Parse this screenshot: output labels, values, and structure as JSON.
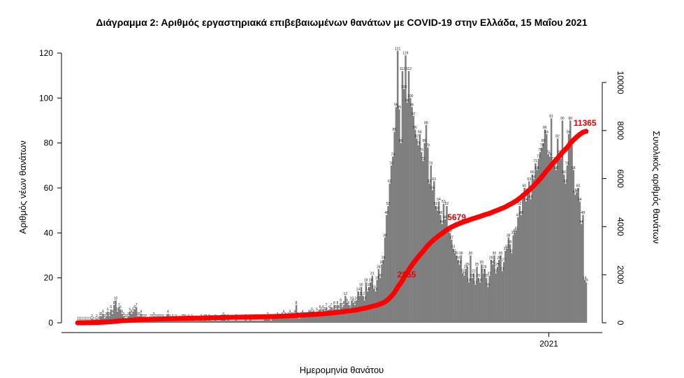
{
  "chart_data": {
    "type": "bar",
    "title": "Διάγραμμα 2: Αριθμός εργαστηριακά επιβεβαιωμένων θανάτων με COVID-19 στην Ελλάδα, 15 Μαΐου 2021",
    "xlabel": "Ημερομηνία θανάτου",
    "ylabel": "Αριθμός νέων θανάτων",
    "y2label": "Συνολικός αριθμός θανάτων",
    "ylim": [
      0,
      125
    ],
    "y2lim": [
      0,
      12000
    ],
    "yticks": [
      0,
      20,
      40,
      60,
      80,
      100,
      120
    ],
    "y2ticks": [
      0,
      2000,
      4000,
      6000,
      8000,
      10000
    ],
    "xticks": [
      {
        "label": "2021",
        "index": 298
      }
    ],
    "grid": false,
    "legend": "none",
    "bar_color": "#7f7f7f",
    "line_color": "#ff0000",
    "series": [
      {
        "kind": "bar",
        "values": [
          1,
          1,
          1,
          1,
          1,
          1,
          1,
          1,
          1,
          2,
          1,
          1,
          2,
          1,
          3,
          3,
          4,
          2,
          3,
          5,
          3,
          6,
          4,
          8,
          10,
          5,
          7,
          6,
          4,
          3,
          2,
          2,
          3,
          5,
          4,
          5,
          6,
          7,
          3,
          3,
          4,
          2,
          2,
          2,
          1,
          1,
          2,
          2,
          3,
          2,
          2,
          2,
          2,
          2,
          2,
          1,
          2,
          4,
          2,
          1,
          2,
          1,
          2,
          1,
          1,
          1,
          2,
          2,
          2,
          1,
          2,
          1,
          2,
          1,
          1,
          1,
          1,
          1,
          2,
          1,
          2,
          2,
          1,
          2,
          1,
          1,
          1,
          2,
          1,
          1,
          1,
          2,
          3,
          2,
          1,
          2,
          1,
          1,
          1,
          1,
          2,
          1,
          1,
          1,
          1,
          1,
          2,
          1,
          1,
          2,
          1,
          1,
          1,
          1,
          1,
          1,
          1,
          1,
          2,
          2,
          3,
          2,
          1,
          2,
          2,
          2,
          3,
          2,
          2,
          3,
          4,
          3,
          2,
          3,
          4,
          3,
          3,
          4,
          8,
          3,
          2,
          3,
          4,
          3,
          3,
          3,
          4,
          4,
          5,
          4,
          3,
          5,
          4,
          6,
          5,
          6,
          5,
          7,
          4,
          6,
          7,
          5,
          8,
          6,
          8,
          6,
          9,
          7,
          8,
          12,
          9,
          8,
          6,
          10,
          9,
          8,
          10,
          14,
          12,
          16,
          12,
          10,
          18,
          14,
          16,
          18,
          21,
          15,
          14,
          19,
          24,
          20,
          26,
          28,
          38,
          48,
          52,
          62,
          70,
          74,
          85,
          96,
          121,
          95,
          80,
          112,
          104,
          119,
          98,
          112,
          100,
          96,
          92,
          86,
          82,
          79,
          84,
          76,
          72,
          80,
          88,
          78,
          62,
          70,
          59,
          63,
          52,
          50,
          54,
          48,
          44,
          53,
          46,
          52,
          41,
          40,
          37,
          33,
          31,
          30,
          28,
          26,
          30,
          22,
          21,
          24,
          25,
          18,
          30,
          20,
          22,
          17,
          25,
          20,
          18,
          26,
          22,
          24,
          20,
          16,
          21,
          28,
          26,
          30,
          22,
          25,
          28,
          30,
          23,
          27,
          32,
          33,
          38,
          35,
          31,
          39,
          40,
          41,
          47,
          52,
          48,
          56,
          60,
          54,
          58,
          63,
          55,
          66,
          64,
          71,
          68,
          73,
          76,
          78,
          80,
          86,
          84,
          75,
          74,
          91,
          72,
          71,
          68,
          82,
          75,
          73,
          90,
          66,
          62,
          70,
          84,
          90,
          79,
          68,
          57,
          58,
          60,
          54,
          44,
          48,
          19,
          18
        ],
        "labels": [
          1,
          1,
          1,
          1,
          1,
          1,
          1,
          1,
          1,
          2,
          1,
          1,
          2,
          1,
          3,
          3,
          4,
          2,
          3,
          5,
          3,
          6,
          4,
          8,
          10,
          5,
          7,
          6,
          4,
          3,
          2,
          2,
          3,
          5,
          4,
          5,
          6,
          7,
          3,
          3,
          4,
          2,
          2,
          2,
          1,
          1,
          2,
          2,
          3,
          2,
          2,
          2,
          2,
          2,
          2,
          1,
          2,
          4,
          2,
          1,
          2,
          1,
          2,
          1,
          1,
          1,
          2,
          2,
          2,
          1,
          2,
          1,
          2,
          1,
          1,
          1,
          1,
          1,
          2,
          1,
          2,
          2,
          1,
          2,
          1,
          1,
          1,
          2,
          1,
          1,
          1,
          2,
          3,
          2,
          1,
          2,
          1,
          1,
          1,
          1,
          2,
          1,
          1,
          1,
          1,
          1,
          2,
          1,
          1,
          2,
          1,
          1,
          1,
          1,
          1,
          1,
          1,
          1,
          2,
          2,
          3,
          2,
          1,
          2,
          2,
          2,
          3,
          2,
          2,
          3,
          4,
          3,
          2,
          3,
          4,
          3,
          3,
          4,
          8,
          3,
          2,
          3,
          4,
          3,
          3,
          3,
          4,
          4,
          5,
          4,
          3,
          5,
          4,
          6,
          5,
          6,
          5,
          7,
          4,
          6,
          7,
          5,
          8,
          6,
          8,
          6,
          9,
          7,
          8,
          12,
          9,
          8,
          6,
          10,
          9,
          8,
          10,
          14,
          12,
          16,
          12,
          10,
          18,
          14,
          16,
          18,
          21,
          15,
          14,
          19,
          24,
          20,
          26,
          28,
          38,
          48,
          52,
          62,
          70,
          74,
          85,
          96,
          121,
          95,
          80,
          112,
          104,
          119,
          98,
          112,
          100,
          96,
          92,
          86,
          82,
          79,
          84,
          76,
          72,
          80,
          88,
          78,
          62,
          70,
          59,
          63,
          52,
          50,
          54,
          48,
          44,
          53,
          46,
          52,
          41,
          40,
          37,
          33,
          31,
          30,
          28,
          26,
          30,
          22,
          21,
          24,
          25,
          18,
          30,
          20,
          22,
          17,
          25,
          20,
          18,
          26,
          22,
          24,
          20,
          16,
          21,
          28,
          26,
          30,
          22,
          25,
          28,
          30,
          23,
          27,
          32,
          33,
          38,
          35,
          31,
          39,
          40,
          41,
          47,
          52,
          48,
          56,
          60,
          54,
          58,
          63,
          55,
          66,
          64,
          71,
          68,
          73,
          76,
          78,
          80,
          86,
          84,
          75,
          74,
          91,
          72,
          71,
          68,
          82,
          75,
          73,
          90,
          66,
          62,
          70,
          84,
          90,
          79,
          68,
          57,
          58,
          60,
          54,
          44,
          48,
          19,
          18
        ]
      },
      {
        "kind": "cumulative-line",
        "annotations": [
          {
            "label": "2855",
            "value": 2855
          },
          {
            "label": "5679",
            "value": 5679
          },
          {
            "label": "11365",
            "value": 11365
          }
        ]
      }
    ]
  }
}
